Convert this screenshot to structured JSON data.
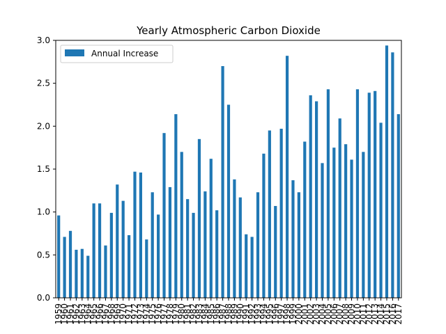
{
  "chart_data": {
    "type": "bar",
    "title": "Yearly Atmospheric Carbon Dioxide",
    "xlabel": "",
    "ylabel": "",
    "ylim": [
      0,
      3.0
    ],
    "yticks": [
      0.0,
      0.5,
      1.0,
      1.5,
      2.0,
      2.5,
      3.0
    ],
    "ytick_labels": [
      "0.0",
      "0.5",
      "1.0",
      "1.5",
      "2.0",
      "2.5",
      "3.0"
    ],
    "legend_position": "top-left",
    "grid": false,
    "bar_color": "#1f77b4",
    "categories": [
      "1959",
      "1960",
      "1961",
      "1962",
      "1963",
      "1964",
      "1965",
      "1966",
      "1967",
      "1968",
      "1969",
      "1970",
      "1971",
      "1972",
      "1973",
      "1974",
      "1975",
      "1976",
      "1977",
      "1978",
      "1979",
      "1980",
      "1981",
      "1982",
      "1983",
      "1984",
      "1985",
      "1986",
      "1987",
      "1988",
      "1989",
      "1990",
      "1991",
      "1992",
      "1993",
      "1994",
      "1995",
      "1996",
      "1997",
      "1998",
      "1999",
      "2000",
      "2001",
      "2002",
      "2003",
      "2004",
      "2005",
      "2006",
      "2007",
      "2008",
      "2009",
      "2010",
      "2011",
      "2012",
      "2013",
      "2014",
      "2015",
      "2016",
      "2017"
    ],
    "series": [
      {
        "name": "Annual Increase",
        "values": [
          0.96,
          0.71,
          0.78,
          0.56,
          0.57,
          0.49,
          1.1,
          1.1,
          0.61,
          0.99,
          1.32,
          1.13,
          0.73,
          1.47,
          1.46,
          0.68,
          1.23,
          0.97,
          1.92,
          1.29,
          2.14,
          1.7,
          1.15,
          0.99,
          1.85,
          1.24,
          1.62,
          1.02,
          2.7,
          2.25,
          1.38,
          1.17,
          0.74,
          0.71,
          1.23,
          1.68,
          1.95,
          1.07,
          1.97,
          2.82,
          1.37,
          1.23,
          1.82,
          2.36,
          2.29,
          1.57,
          2.43,
          1.75,
          2.09,
          1.79,
          1.61,
          2.43,
          1.7,
          2.39,
          2.41,
          2.04,
          2.94,
          2.86,
          2.14
        ]
      }
    ]
  }
}
